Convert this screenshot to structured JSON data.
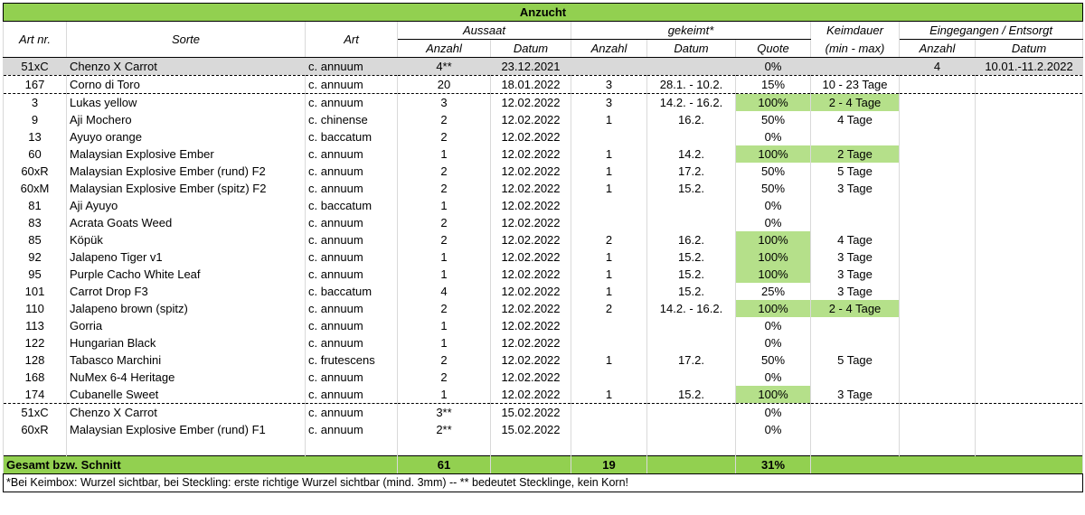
{
  "title": "Anzucht",
  "headers": {
    "art_nr": "Art nr.",
    "sorte": "Sorte",
    "art": "Art",
    "aussaat": "Aussaat",
    "gekeimt": "gekeimt*",
    "keimdauer": "Keimdauer",
    "keimdauer_sub": "(min - max)",
    "eingegangen": "Eingegangen / Entsorgt",
    "anzahl": "Anzahl",
    "datum": "Datum",
    "quote": "Quote"
  },
  "rows": [
    {
      "nr": "51xC",
      "sorte": "Chenzo X Carrot",
      "art": "c. annuum",
      "a_anz": "4**",
      "a_dat": "23.12.2021",
      "g_anz": "",
      "g_dat": "",
      "quote": "0%",
      "keim": "",
      "e_anz": "4",
      "e_dat": "10.01.-11.2.2022",
      "grey": true
    },
    {
      "nr": "167",
      "sorte": "Corno di Toro",
      "art": "c. annuum",
      "a_anz": "20",
      "a_dat": "18.01.2022",
      "g_anz": "3",
      "g_dat": "28.1. - 10.2.",
      "quote": "15%",
      "keim": "10 - 23 Tage",
      "e_anz": "",
      "e_dat": ""
    },
    {
      "nr": "3",
      "sorte": "Lukas yellow",
      "art": "c. annuum",
      "a_anz": "3",
      "a_dat": "12.02.2022",
      "g_anz": "3",
      "g_dat": "14.2. - 16.2.",
      "quote": "100%",
      "keim": "2 - 4 Tage",
      "e_anz": "",
      "e_dat": "",
      "q_green": true,
      "k_green": true,
      "dashed": true
    },
    {
      "nr": "9",
      "sorte": "Aji Mochero",
      "art": "c. chinense",
      "a_anz": "2",
      "a_dat": "12.02.2022",
      "g_anz": "1",
      "g_dat": "16.2.",
      "quote": "50%",
      "keim": "4 Tage",
      "e_anz": "",
      "e_dat": ""
    },
    {
      "nr": "13",
      "sorte": "Ayuyo orange",
      "art": "c. baccatum",
      "a_anz": "2",
      "a_dat": "12.02.2022",
      "g_anz": "",
      "g_dat": "",
      "quote": "0%",
      "keim": "",
      "e_anz": "",
      "e_dat": ""
    },
    {
      "nr": "60",
      "sorte": "Malaysian Explosive Ember",
      "art": "c. annuum",
      "a_anz": "1",
      "a_dat": "12.02.2022",
      "g_anz": "1",
      "g_dat": "14.2.",
      "quote": "100%",
      "keim": "2 Tage",
      "e_anz": "",
      "e_dat": "",
      "q_green": true,
      "k_green": true
    },
    {
      "nr": "60xR",
      "sorte": "Malaysian Explosive Ember (rund) F2",
      "art": "c. annuum",
      "a_anz": "2",
      "a_dat": "12.02.2022",
      "g_anz": "1",
      "g_dat": "17.2.",
      "quote": "50%",
      "keim": "5 Tage",
      "e_anz": "",
      "e_dat": ""
    },
    {
      "nr": "60xM",
      "sorte": "Malaysian Explosive Ember (spitz) F2",
      "art": "c. annuum",
      "a_anz": "2",
      "a_dat": "12.02.2022",
      "g_anz": "1",
      "g_dat": "15.2.",
      "quote": "50%",
      "keim": "3 Tage",
      "e_anz": "",
      "e_dat": ""
    },
    {
      "nr": "81",
      "sorte": "Aji Ayuyo",
      "art": "c. baccatum",
      "a_anz": "1",
      "a_dat": "12.02.2022",
      "g_anz": "",
      "g_dat": "",
      "quote": "0%",
      "keim": "",
      "e_anz": "",
      "e_dat": ""
    },
    {
      "nr": "83",
      "sorte": "Acrata Goats Weed",
      "art": "c. annuum",
      "a_anz": "2",
      "a_dat": "12.02.2022",
      "g_anz": "",
      "g_dat": "",
      "quote": "0%",
      "keim": "",
      "e_anz": "",
      "e_dat": ""
    },
    {
      "nr": "85",
      "sorte": "Köpük",
      "art": "c. annuum",
      "a_anz": "2",
      "a_dat": "12.02.2022",
      "g_anz": "2",
      "g_dat": "16.2.",
      "quote": "100%",
      "keim": "4 Tage",
      "e_anz": "",
      "e_dat": "",
      "q_green": true
    },
    {
      "nr": "92",
      "sorte": "Jalapeno Tiger v1",
      "art": "c. annuum",
      "a_anz": "1",
      "a_dat": "12.02.2022",
      "g_anz": "1",
      "g_dat": "15.2.",
      "quote": "100%",
      "keim": "3 Tage",
      "e_anz": "",
      "e_dat": "",
      "q_green": true
    },
    {
      "nr": "95",
      "sorte": "Purple Cacho White Leaf",
      "art": "c. annuum",
      "a_anz": "1",
      "a_dat": "12.02.2022",
      "g_anz": "1",
      "g_dat": "15.2.",
      "quote": "100%",
      "keim": "3 Tage",
      "e_anz": "",
      "e_dat": "",
      "q_green": true
    },
    {
      "nr": "101",
      "sorte": "Carrot Drop F3",
      "art": "c. baccatum",
      "a_anz": "4",
      "a_dat": "12.02.2022",
      "g_anz": "1",
      "g_dat": "15.2.",
      "quote": "25%",
      "keim": "3 Tage",
      "e_anz": "",
      "e_dat": ""
    },
    {
      "nr": "110",
      "sorte": "Jalapeno brown (spitz)",
      "art": "c. annuum",
      "a_anz": "2",
      "a_dat": "12.02.2022",
      "g_anz": "2",
      "g_dat": "14.2. - 16.2.",
      "quote": "100%",
      "keim": "2 - 4 Tage",
      "e_anz": "",
      "e_dat": "",
      "q_green": true,
      "k_green": true
    },
    {
      "nr": "113",
      "sorte": "Gorria",
      "art": "c. annuum",
      "a_anz": "1",
      "a_dat": "12.02.2022",
      "g_anz": "",
      "g_dat": "",
      "quote": "0%",
      "keim": "",
      "e_anz": "",
      "e_dat": ""
    },
    {
      "nr": "122",
      "sorte": "Hungarian Black",
      "art": "c. annuum",
      "a_anz": "1",
      "a_dat": "12.02.2022",
      "g_anz": "",
      "g_dat": "",
      "quote": "0%",
      "keim": "",
      "e_anz": "",
      "e_dat": ""
    },
    {
      "nr": "128",
      "sorte": "Tabasco Marchini",
      "art": "c. frutescens",
      "a_anz": "2",
      "a_dat": "12.02.2022",
      "g_anz": "1",
      "g_dat": "17.2.",
      "quote": "50%",
      "keim": "5 Tage",
      "e_anz": "",
      "e_dat": ""
    },
    {
      "nr": "168",
      "sorte": "NuMex 6-4 Heritage",
      "art": "c. annuum",
      "a_anz": "2",
      "a_dat": "12.02.2022",
      "g_anz": "",
      "g_dat": "",
      "quote": "0%",
      "keim": "",
      "e_anz": "",
      "e_dat": ""
    },
    {
      "nr": "174",
      "sorte": "Cubanelle Sweet",
      "art": "c. annuum",
      "a_anz": "1",
      "a_dat": "12.02.2022",
      "g_anz": "1",
      "g_dat": "15.2.",
      "quote": "100%",
      "keim": "3 Tage",
      "e_anz": "",
      "e_dat": "",
      "q_green": true
    },
    {
      "nr": "51xC",
      "sorte": "Chenzo X Carrot",
      "art": "c. annuum",
      "a_anz": "3**",
      "a_dat": "15.02.2022",
      "g_anz": "",
      "g_dat": "",
      "quote": "0%",
      "keim": "",
      "e_anz": "",
      "e_dat": "",
      "dashed": true
    },
    {
      "nr": "60xR",
      "sorte": "Malaysian Explosive Ember (rund) F1",
      "art": "c. annuum",
      "a_anz": "2**",
      "a_dat": "15.02.2022",
      "g_anz": "",
      "g_dat": "",
      "quote": "0%",
      "keim": "",
      "e_anz": "",
      "e_dat": ""
    }
  ],
  "total": {
    "label": "Gesamt bzw. Schnitt",
    "aussaat": "61",
    "gekeimt": "19",
    "quote": "31%"
  },
  "footnote": "*Bei Keimbox: Wurzel sichtbar, bei Steckling: erste richtige Wurzel sichtbar (mind. 3mm)  --  ** bedeutet Stecklinge, kein Korn!",
  "colors": {
    "header_green": "#92d050",
    "cell_green": "#b5e08a",
    "grey": "#d9d9d9"
  }
}
